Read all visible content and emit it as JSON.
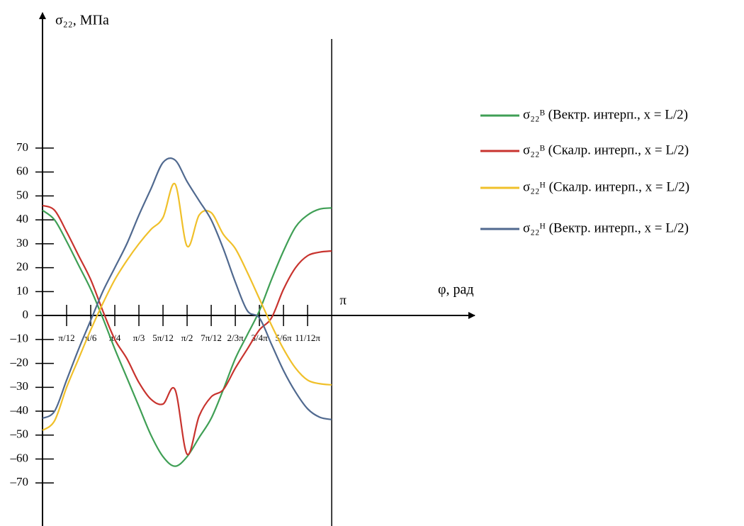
{
  "chart_data": {
    "type": "line",
    "y_label": "σ₂₂, МПа",
    "x_label": "φ, рад",
    "x": [
      0,
      0.1309,
      0.2618,
      0.3927,
      0.5236,
      0.6545,
      0.7854,
      0.9163,
      1.0472,
      1.1781,
      1.309,
      1.4399,
      1.5708,
      1.7017,
      1.8326,
      1.9635,
      2.0944,
      2.2253,
      2.3562,
      2.4871,
      2.618,
      2.7489,
      2.8798,
      3.0107,
      3.1416
    ],
    "series": [
      {
        "name": "σ₂₂ᴮ (Вектр.  интерп., x = L/2)",
        "color": "#3f9f55",
        "values": [
          44,
          40,
          31,
          21,
          11,
          -1,
          -14,
          -26,
          -38,
          -50,
          -59,
          -63,
          -59,
          -51,
          -43,
          -31,
          -18,
          -8,
          2,
          15,
          27,
          37,
          42,
          44.5,
          45
        ]
      },
      {
        "name": "σ₂₂ᴮ (Скалр.  интерп., x = L/2)",
        "color": "#c8332e",
        "values": [
          46,
          44,
          35,
          25,
          15,
          2,
          -10,
          -18,
          -28,
          -35,
          -37,
          -31,
          -58,
          -42,
          -34,
          -31,
          -22,
          -14,
          -6,
          -1,
          11,
          20,
          25,
          26.5,
          27
        ]
      },
      {
        "name": "σ₂₂ᴴ (Скалр.  интерп., x = L/2)",
        "color": "#f0c02a",
        "values": [
          -48,
          -44,
          -30,
          -18,
          -6,
          5,
          15,
          23,
          30,
          36,
          41,
          55,
          29,
          42,
          43,
          34,
          28,
          18,
          7,
          -4,
          -14,
          -22,
          -27,
          -28.5,
          -29
        ]
      },
      {
        "name": "σ₂₂ᴴ (Вектр.  интерп., x = L/2)",
        "color": "#50698f",
        "values": [
          -43,
          -40,
          -27,
          -14,
          -2,
          10,
          20,
          30,
          42,
          53,
          64,
          65,
          56,
          48,
          40,
          28,
          14,
          2,
          -1,
          -12,
          -23,
          -32,
          -39,
          -42.5,
          -43.5
        ]
      }
    ],
    "xlim": [
      0,
      4.68
    ],
    "xticks": [
      {
        "value": 0.2618,
        "label": "π/12"
      },
      {
        "value": 0.5236,
        "label": "π/6"
      },
      {
        "value": 0.7854,
        "label": "π/4"
      },
      {
        "value": 1.0472,
        "label": "π/3"
      },
      {
        "value": 1.309,
        "label": "5π/12"
      },
      {
        "value": 1.5708,
        "label": "π/2"
      },
      {
        "value": 1.8326,
        "label": "7π/12"
      },
      {
        "value": 2.0944,
        "label": "2/3π"
      },
      {
        "value": 2.3562,
        "label": "3/4π"
      },
      {
        "value": 2.618,
        "label": "5/6π"
      },
      {
        "value": 2.8798,
        "label": "11/12π"
      },
      {
        "value": 3.1416,
        "label": "π"
      }
    ],
    "ylim": [
      -88,
      126
    ],
    "yticks": [
      70,
      60,
      50,
      40,
      30,
      20,
      10,
      0,
      {
        "value": -10,
        "label": "–10"
      },
      {
        "value": -20,
        "label": "–20"
      },
      {
        "value": -30,
        "label": "–30"
      },
      {
        "value": -40,
        "label": "–40"
      },
      {
        "value": -50,
        "label": "–50"
      },
      {
        "value": -60,
        "label": "–60"
      },
      {
        "value": -70,
        "label": "–70"
      }
    ],
    "grid": false,
    "legend": "right"
  }
}
